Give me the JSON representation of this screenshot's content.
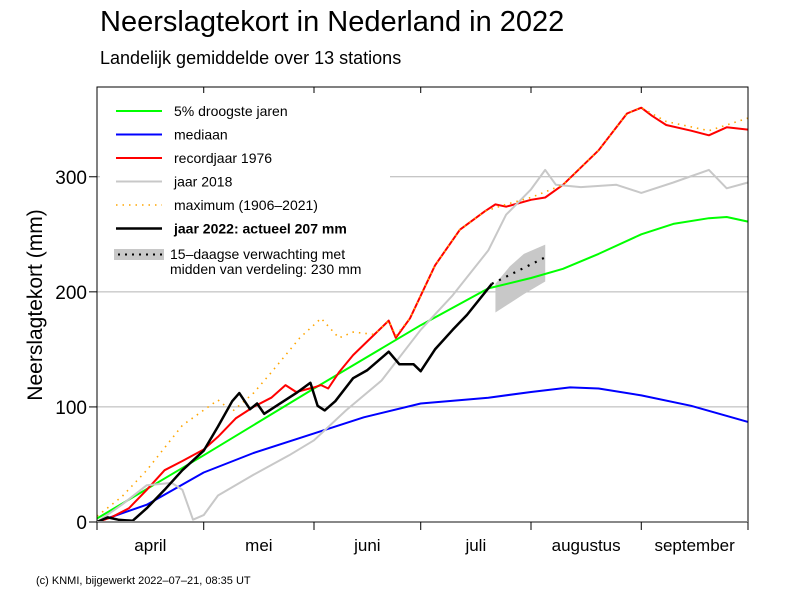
{
  "chart_data": {
    "type": "line",
    "title": "Neerslagtekort in Nederland in 2022",
    "subtitle": "Landelijk gemiddelde over 13 stations",
    "ylabel": "Neerslagtekort (mm)",
    "xlabel": "",
    "ylim": [
      0,
      378
    ],
    "xlim": [
      "04-01",
      "10-01"
    ],
    "yticks": [
      0,
      100,
      200,
      300
    ],
    "grid": "horizontal",
    "legend_position": "top-left",
    "month_ticks": [
      "04-01",
      "05-01",
      "06-01",
      "07-01",
      "08-01",
      "09-01",
      "10-01"
    ],
    "month_labels": [
      "april",
      "mei",
      "juni",
      "juli",
      "augustus",
      "september"
    ],
    "series": [
      {
        "name": "5% droogste jaren",
        "color": "#00ff00",
        "style": "solid",
        "points": [
          [
            "04-01",
            3
          ],
          [
            "05-01",
            58
          ],
          [
            "06-01",
            116
          ],
          [
            "07-01",
            171
          ],
          [
            "07-20",
            203
          ],
          [
            "08-01",
            212
          ],
          [
            "08-10",
            220
          ],
          [
            "08-20",
            233
          ],
          [
            "09-01",
            250
          ],
          [
            "09-10",
            259
          ],
          [
            "09-20",
            264
          ],
          [
            "09-25",
            265
          ],
          [
            "10-01",
            261
          ]
        ]
      },
      {
        "name": "mediaan",
        "color": "#0000ff",
        "style": "solid",
        "points": [
          [
            "04-01",
            0
          ],
          [
            "04-15",
            15
          ],
          [
            "05-01",
            43
          ],
          [
            "05-15",
            60
          ],
          [
            "06-01",
            77
          ],
          [
            "06-15",
            91
          ],
          [
            "07-01",
            103
          ],
          [
            "07-20",
            108
          ],
          [
            "08-01",
            113
          ],
          [
            "08-12",
            117
          ],
          [
            "08-20",
            116
          ],
          [
            "09-01",
            110
          ],
          [
            "09-15",
            101
          ],
          [
            "10-01",
            87
          ]
        ]
      },
      {
        "name": "recordjaar 1976",
        "color": "#ff0000",
        "style": "solid",
        "points": [
          [
            "04-01",
            0
          ],
          [
            "04-05",
            4
          ],
          [
            "04-10",
            12
          ],
          [
            "04-15",
            28
          ],
          [
            "04-20",
            45
          ],
          [
            "04-25",
            53
          ],
          [
            "05-01",
            63
          ],
          [
            "05-05",
            74
          ],
          [
            "05-10",
            90
          ],
          [
            "05-15",
            100
          ],
          [
            "05-20",
            108
          ],
          [
            "05-24",
            119
          ],
          [
            "05-27",
            113
          ],
          [
            "06-01",
            117
          ],
          [
            "06-03",
            119
          ],
          [
            "06-05",
            116
          ],
          [
            "06-08",
            130
          ],
          [
            "06-12",
            145
          ],
          [
            "06-18",
            163
          ],
          [
            "06-22",
            175
          ],
          [
            "06-24",
            160
          ],
          [
            "06-28",
            177
          ],
          [
            "07-05",
            223
          ],
          [
            "07-12",
            254
          ],
          [
            "07-19",
            270
          ],
          [
            "07-22",
            276
          ],
          [
            "07-25",
            274
          ],
          [
            "08-01",
            280
          ],
          [
            "08-05",
            282
          ],
          [
            "08-10",
            293
          ],
          [
            "08-20",
            323
          ],
          [
            "08-28",
            355
          ],
          [
            "09-01",
            360
          ],
          [
            "09-04",
            353
          ],
          [
            "09-08",
            345
          ],
          [
            "09-15",
            340
          ],
          [
            "09-20",
            336
          ],
          [
            "09-25",
            343
          ],
          [
            "10-01",
            341
          ]
        ]
      },
      {
        "name": "jaar 2018",
        "color": "#c8c8c8",
        "style": "solid",
        "points": [
          [
            "04-01",
            0
          ],
          [
            "04-08",
            15
          ],
          [
            "04-15",
            32
          ],
          [
            "04-22",
            34
          ],
          [
            "04-25",
            28
          ],
          [
            "04-28",
            2
          ],
          [
            "05-01",
            6
          ],
          [
            "05-05",
            23
          ],
          [
            "05-15",
            41
          ],
          [
            "05-25",
            58
          ],
          [
            "06-01",
            71
          ],
          [
            "06-10",
            97
          ],
          [
            "06-20",
            123
          ],
          [
            "07-01",
            167
          ],
          [
            "07-10",
            197
          ],
          [
            "07-20",
            236
          ],
          [
            "07-25",
            267
          ],
          [
            "08-01",
            289
          ],
          [
            "08-05",
            306
          ],
          [
            "08-08",
            293
          ],
          [
            "08-15",
            291
          ],
          [
            "08-25",
            293
          ],
          [
            "09-01",
            286
          ],
          [
            "09-10",
            295
          ],
          [
            "09-20",
            306
          ],
          [
            "09-25",
            290
          ],
          [
            "10-01",
            295
          ]
        ]
      },
      {
        "name": "maximum (1906–2021)",
        "color": "#ffa500",
        "style": "dotted",
        "points": [
          [
            "04-01",
            5
          ],
          [
            "04-08",
            22
          ],
          [
            "04-15",
            45
          ],
          [
            "04-25",
            84
          ],
          [
            "05-05",
            106
          ],
          [
            "05-09",
            96
          ],
          [
            "05-15",
            112
          ],
          [
            "05-20",
            130
          ],
          [
            "05-28",
            160
          ],
          [
            "06-03",
            177
          ],
          [
            "06-08",
            160
          ],
          [
            "06-12",
            165
          ],
          [
            "06-18",
            163
          ],
          [
            "06-22",
            175
          ],
          [
            "06-24",
            162
          ],
          [
            "06-28",
            177
          ],
          [
            "07-05",
            223
          ],
          [
            "07-12",
            254
          ],
          [
            "07-19",
            270
          ],
          [
            "07-25",
            276
          ],
          [
            "08-01",
            282
          ],
          [
            "08-10",
            293
          ],
          [
            "08-20",
            323
          ],
          [
            "08-28",
            355
          ],
          [
            "09-01",
            360
          ],
          [
            "09-08",
            348
          ],
          [
            "09-20",
            340
          ],
          [
            "10-01",
            351
          ]
        ]
      },
      {
        "name": "jaar 2022: actueel 207 mm",
        "color": "#000000",
        "style": "solid-bold",
        "points": [
          [
            "04-01",
            0
          ],
          [
            "04-04",
            4
          ],
          [
            "04-07",
            2
          ],
          [
            "04-11",
            1
          ],
          [
            "04-15",
            12
          ],
          [
            "04-20",
            28
          ],
          [
            "04-25",
            45
          ],
          [
            "05-01",
            62
          ],
          [
            "05-05",
            83
          ],
          [
            "05-09",
            105
          ],
          [
            "05-11",
            112
          ],
          [
            "05-14",
            98
          ],
          [
            "05-16",
            103
          ],
          [
            "05-18",
            94
          ],
          [
            "05-22",
            102
          ],
          [
            "05-27",
            112
          ],
          [
            "05-31",
            121
          ],
          [
            "06-02",
            101
          ],
          [
            "06-04",
            97
          ],
          [
            "06-07",
            105
          ],
          [
            "06-12",
            125
          ],
          [
            "06-16",
            132
          ],
          [
            "06-22",
            148
          ],
          [
            "06-25",
            137
          ],
          [
            "06-29",
            137
          ],
          [
            "07-01",
            131
          ],
          [
            "07-05",
            150
          ],
          [
            "07-10",
            167
          ],
          [
            "07-14",
            180
          ],
          [
            "07-21",
            207
          ]
        ]
      }
    ],
    "forecast": {
      "label_line1": "15–daagse verwachting met",
      "label_line2": "midden van verdeling: 230 mm",
      "color": "#c8c8c8",
      "median": [
        [
          "07-21",
          207
        ],
        [
          "08-05",
          230
        ]
      ],
      "band_low": [
        [
          "07-22",
          182
        ],
        [
          "07-26",
          190
        ],
        [
          "07-30",
          198
        ],
        [
          "08-05",
          209
        ]
      ],
      "band_high": [
        [
          "07-22",
          207
        ],
        [
          "07-26",
          222
        ],
        [
          "07-30",
          233
        ],
        [
          "08-05",
          241
        ]
      ]
    }
  },
  "footer": "(c) KNMI, bijgewerkt 2022–07–21, 08:35 UT"
}
